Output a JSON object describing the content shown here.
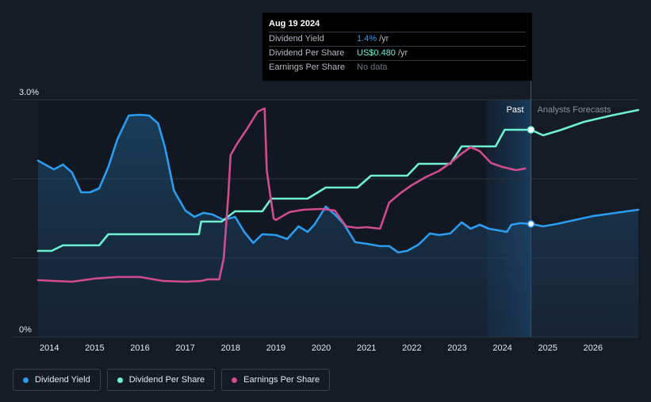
{
  "tooltip": {
    "date": "Aug 19 2024",
    "rows": [
      {
        "label": "Dividend Yield",
        "value": "1.4%",
        "suffix": "/yr",
        "color": "#2b9cf0"
      },
      {
        "label": "Dividend Per Share",
        "value": "US$0.480",
        "suffix": "/yr",
        "color": "#6ff0d0"
      },
      {
        "label": "Earnings Per Share",
        "value": "No data",
        "suffix": "",
        "color": "#6b7280"
      }
    ]
  },
  "legend": [
    {
      "label": "Dividend Yield",
      "color": "#2b9cf0"
    },
    {
      "label": "Dividend Per Share",
      "color": "#6ff0d0"
    },
    {
      "label": "Earnings Per Share",
      "color": "#d04c8e"
    }
  ],
  "chart_data": {
    "type": "line",
    "title": "",
    "xlabel": "",
    "ylabel": "",
    "xlim": [
      2013.75,
      2027.0
    ],
    "ylim": [
      0,
      3.0
    ],
    "y_tick_labels": [
      {
        "value": 3.0,
        "label": "3.0%"
      },
      {
        "value": 0,
        "label": "0%"
      }
    ],
    "x_ticks": [
      2014,
      2015,
      2016,
      2017,
      2018,
      2019,
      2020,
      2021,
      2022,
      2023,
      2024,
      2025,
      2026
    ],
    "past_label": "Past",
    "forecast_label": "Analysts Forecasts",
    "today": 2024.63,
    "highlight_start": 2023.65,
    "series": [
      {
        "name": "Dividend Yield",
        "color": "#2b9cf0",
        "area": true,
        "points": [
          [
            2013.75,
            2.23
          ],
          [
            2014.0,
            2.15
          ],
          [
            2014.1,
            2.12
          ],
          [
            2014.3,
            2.18
          ],
          [
            2014.5,
            2.08
          ],
          [
            2014.7,
            1.83
          ],
          [
            2014.9,
            1.83
          ],
          [
            2015.1,
            1.88
          ],
          [
            2015.3,
            2.15
          ],
          [
            2015.5,
            2.5
          ],
          [
            2015.75,
            2.8
          ],
          [
            2016.0,
            2.81
          ],
          [
            2016.2,
            2.8
          ],
          [
            2016.4,
            2.7
          ],
          [
            2016.55,
            2.4
          ],
          [
            2016.75,
            1.85
          ],
          [
            2017.0,
            1.6
          ],
          [
            2017.2,
            1.52
          ],
          [
            2017.4,
            1.57
          ],
          [
            2017.6,
            1.55
          ],
          [
            2017.85,
            1.48
          ],
          [
            2018.1,
            1.52
          ],
          [
            2018.3,
            1.33
          ],
          [
            2018.5,
            1.19
          ],
          [
            2018.7,
            1.3
          ],
          [
            2019.0,
            1.29
          ],
          [
            2019.25,
            1.24
          ],
          [
            2019.5,
            1.4
          ],
          [
            2019.7,
            1.33
          ],
          [
            2019.85,
            1.42
          ],
          [
            2020.1,
            1.65
          ],
          [
            2020.3,
            1.55
          ],
          [
            2020.5,
            1.43
          ],
          [
            2020.75,
            1.2
          ],
          [
            2021.0,
            1.18
          ],
          [
            2021.3,
            1.15
          ],
          [
            2021.5,
            1.15
          ],
          [
            2021.7,
            1.07
          ],
          [
            2021.9,
            1.09
          ],
          [
            2022.15,
            1.17
          ],
          [
            2022.4,
            1.31
          ],
          [
            2022.6,
            1.29
          ],
          [
            2022.85,
            1.31
          ],
          [
            2023.1,
            1.45
          ],
          [
            2023.3,
            1.37
          ],
          [
            2023.5,
            1.42
          ],
          [
            2023.7,
            1.37
          ],
          [
            2023.9,
            1.35
          ],
          [
            2024.1,
            1.33
          ],
          [
            2024.2,
            1.42
          ],
          [
            2024.4,
            1.44
          ],
          [
            2024.63,
            1.43
          ],
          [
            2024.9,
            1.4
          ],
          [
            2025.2,
            1.43
          ],
          [
            2025.6,
            1.48
          ],
          [
            2026.0,
            1.53
          ],
          [
            2026.5,
            1.57
          ],
          [
            2027.0,
            1.61
          ]
        ]
      },
      {
        "name": "Dividend Per Share",
        "color": "#6ff0d0",
        "area": false,
        "points": [
          [
            2013.75,
            1.09
          ],
          [
            2014.05,
            1.09
          ],
          [
            2014.3,
            1.16
          ],
          [
            2015.1,
            1.16
          ],
          [
            2015.3,
            1.3
          ],
          [
            2017.3,
            1.3
          ],
          [
            2017.35,
            1.46
          ],
          [
            2017.8,
            1.46
          ],
          [
            2018.1,
            1.59
          ],
          [
            2018.7,
            1.59
          ],
          [
            2018.9,
            1.75
          ],
          [
            2019.7,
            1.75
          ],
          [
            2020.1,
            1.89
          ],
          [
            2020.8,
            1.89
          ],
          [
            2021.1,
            2.04
          ],
          [
            2021.9,
            2.04
          ],
          [
            2022.15,
            2.19
          ],
          [
            2022.85,
            2.19
          ],
          [
            2023.1,
            2.41
          ],
          [
            2023.85,
            2.41
          ],
          [
            2024.05,
            2.62
          ],
          [
            2024.63,
            2.62
          ],
          [
            2024.9,
            2.55
          ],
          [
            2025.3,
            2.62
          ],
          [
            2025.8,
            2.72
          ],
          [
            2026.4,
            2.8
          ],
          [
            2027.0,
            2.87
          ]
        ]
      },
      {
        "name": "Earnings Per Share",
        "color": "#d04c8e",
        "area": false,
        "points": [
          [
            2013.75,
            0.72
          ],
          [
            2014.1,
            0.71
          ],
          [
            2014.5,
            0.7
          ],
          [
            2015.0,
            0.74
          ],
          [
            2015.5,
            0.76
          ],
          [
            2016.0,
            0.76
          ],
          [
            2016.5,
            0.71
          ],
          [
            2017.0,
            0.7
          ],
          [
            2017.35,
            0.71
          ],
          [
            2017.5,
            0.73
          ],
          [
            2017.75,
            0.73
          ],
          [
            2017.85,
            1.0
          ],
          [
            2017.95,
            1.8
          ],
          [
            2018.0,
            2.3
          ],
          [
            2018.15,
            2.45
          ],
          [
            2018.35,
            2.62
          ],
          [
            2018.6,
            2.85
          ],
          [
            2018.75,
            2.89
          ],
          [
            2018.8,
            2.1
          ],
          [
            2018.95,
            1.5
          ],
          [
            2019.0,
            1.48
          ],
          [
            2019.3,
            1.58
          ],
          [
            2019.6,
            1.61
          ],
          [
            2020.0,
            1.62
          ],
          [
            2020.3,
            1.6
          ],
          [
            2020.55,
            1.4
          ],
          [
            2020.8,
            1.38
          ],
          [
            2021.0,
            1.39
          ],
          [
            2021.3,
            1.37
          ],
          [
            2021.5,
            1.7
          ],
          [
            2021.75,
            1.82
          ],
          [
            2022.0,
            1.92
          ],
          [
            2022.3,
            2.02
          ],
          [
            2022.6,
            2.1
          ],
          [
            2022.85,
            2.2
          ],
          [
            2023.1,
            2.32
          ],
          [
            2023.3,
            2.4
          ],
          [
            2023.5,
            2.35
          ],
          [
            2023.75,
            2.2
          ],
          [
            2024.0,
            2.15
          ],
          [
            2024.3,
            2.11
          ],
          [
            2024.5,
            2.13
          ]
        ]
      }
    ],
    "markers": [
      {
        "series": "Dividend Yield",
        "x": 2024.63,
        "y": 1.43
      },
      {
        "series": "Dividend Per Share",
        "x": 2024.63,
        "y": 2.62
      }
    ]
  }
}
